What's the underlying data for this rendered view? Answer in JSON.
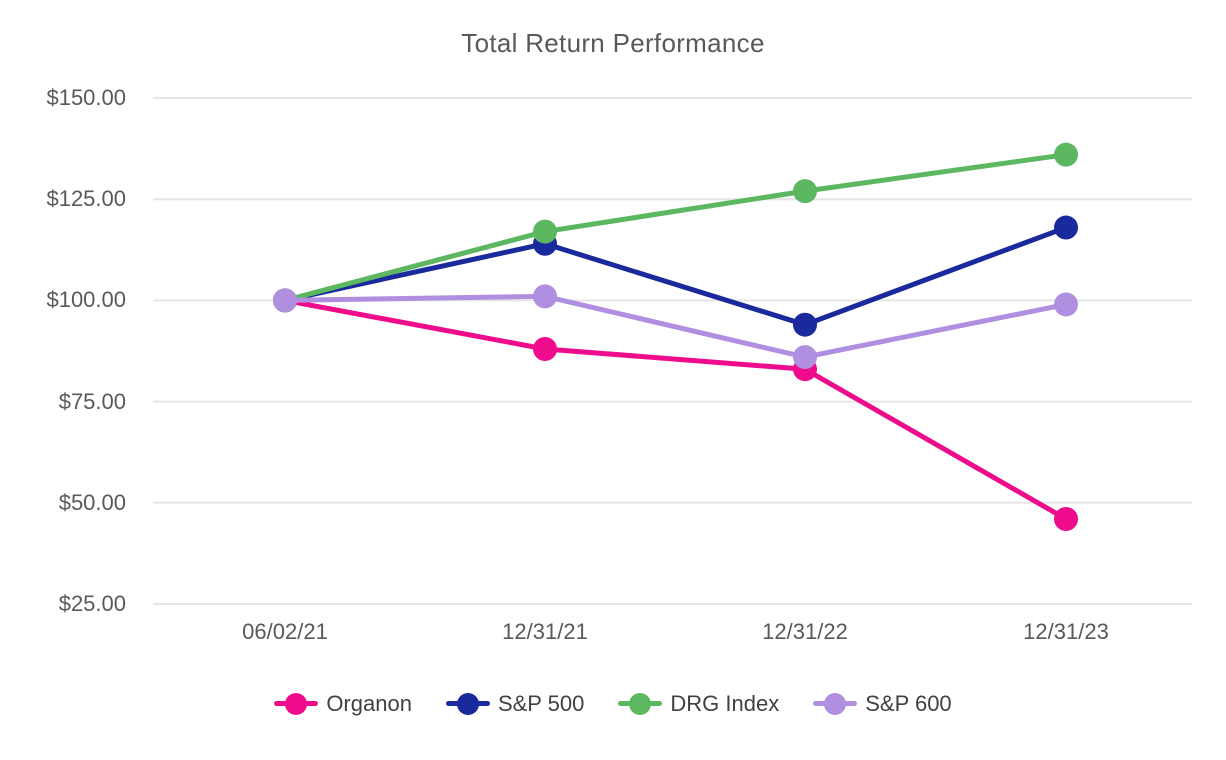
{
  "chart_data": {
    "type": "line",
    "title": "Total Return Performance",
    "x_labels": [
      "06/02/21",
      "12/31/21",
      "12/31/22",
      "12/31/23"
    ],
    "y_ticks": [
      150,
      125,
      100,
      75,
      50,
      25
    ],
    "y_tick_labels": [
      "$150.00",
      "$125.00",
      "$100.00",
      "$75.00",
      "$50.00",
      "$25.00"
    ],
    "ylim": [
      25,
      150
    ],
    "grid": "horizontal",
    "legend_position": "bottom",
    "series": [
      {
        "name": "Organon",
        "color": "#EE0C8C",
        "values": [
          100,
          88,
          83,
          46
        ]
      },
      {
        "name": "S&P 500",
        "color": "#1A2A9C",
        "values": [
          100,
          114,
          94,
          118
        ]
      },
      {
        "name": "DRG Index",
        "color": "#5CB860",
        "values": [
          100,
          117,
          127,
          136
        ]
      },
      {
        "name": "S&P 600",
        "color": "#B08FE0",
        "values": [
          100,
          101,
          86,
          99
        ]
      }
    ],
    "colors": {
      "grid": "#E6E6E6",
      "axis_text": "#595959",
      "title_text": "#595959",
      "legend_text": "#414141",
      "background": "#FFFFFF"
    }
  }
}
